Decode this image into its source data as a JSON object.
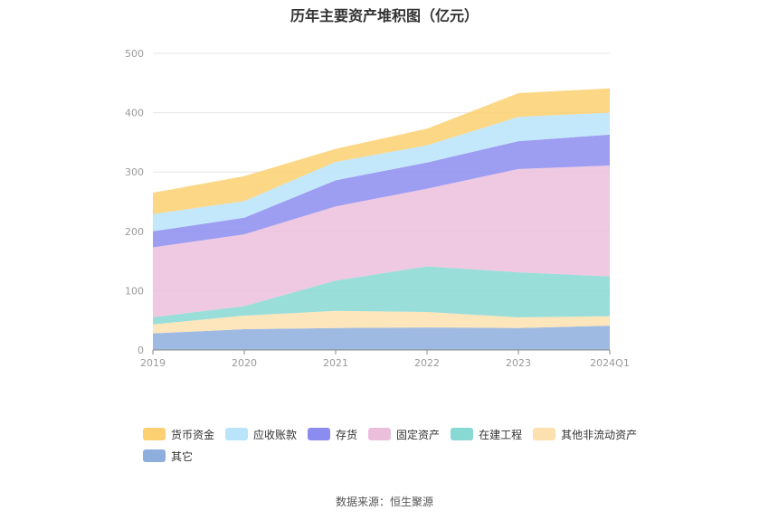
{
  "chart_data": {
    "type": "area",
    "title": "历年主要资产堆积图（亿元）",
    "categories": [
      "2019",
      "2020",
      "2021",
      "2022",
      "2023",
      "2024Q1"
    ],
    "y_ticks": [
      "0",
      "100",
      "200",
      "300",
      "400",
      "500"
    ],
    "ylim": [
      0,
      500
    ],
    "grid": true,
    "legend_position": "bottom",
    "stacked": true,
    "series": [
      {
        "name": "其它",
        "color": "#8eaedd",
        "values": [
          28,
          35,
          37,
          38,
          37,
          41
        ]
      },
      {
        "name": "其他非流动资产",
        "color": "#fde0b0",
        "values": [
          15,
          23,
          29,
          26,
          18,
          16
        ]
      },
      {
        "name": "在建工程",
        "color": "#88d8d3",
        "values": [
          12,
          16,
          51,
          77,
          76,
          67
        ]
      },
      {
        "name": "固定资产",
        "color": "#ebbfdc",
        "values": [
          118,
          121,
          125,
          131,
          174,
          187
        ]
      },
      {
        "name": "存货",
        "color": "#8c8cf0",
        "values": [
          27,
          28,
          44,
          44,
          47,
          52
        ]
      },
      {
        "name": "应收账款",
        "color": "#b9e4fa",
        "values": [
          29,
          28,
          31,
          29,
          41,
          37
        ]
      },
      {
        "name": "货币资金",
        "color": "#fcd070",
        "values": [
          36,
          42,
          22,
          28,
          40,
          41
        ]
      }
    ],
    "legend_order": [
      "货币资金",
      "应收账款",
      "存货",
      "固定资产",
      "在建工程",
      "其他非流动资产",
      "其它"
    ]
  },
  "source": "数据来源：恒生聚源"
}
